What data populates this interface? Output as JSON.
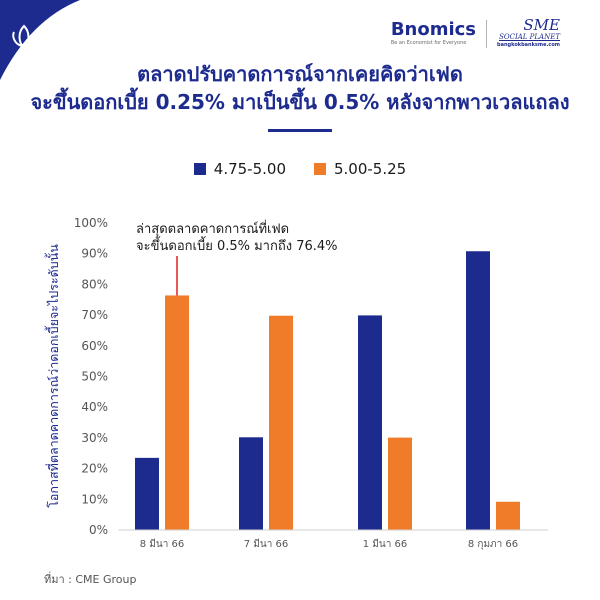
{
  "header": {
    "logo_bnomics": "Bnomics",
    "logo_bnomics_tagline": "Be an Economist for Everyone",
    "logo_sme": "SME",
    "logo_sme_sub": "SOCIAL PLANET",
    "logo_sme_url": "bangkokbanksme.com"
  },
  "title_line1": "ตลาดปรับคาดการณ์จากเคยคิดว่าเฟด",
  "title_line2": "จะขึ้นดอกเบี้ย 0.25% มาเป็นขึ้น 0.5% หลังจากพาวเวลแถลง",
  "source": "ที่มา : CME Group",
  "colors": {
    "primary": "#1d2b8f",
    "accent": "#f07c2a",
    "corner": "#1d2b8f"
  },
  "chart_data": {
    "type": "bar",
    "categories": [
      "8 มีนา 66",
      "7 มีนา 66",
      "1 มีนา 66",
      "8 กุมภา 66"
    ],
    "series": [
      {
        "name": "4.75-5.00",
        "color": "#1d2b8f",
        "values": [
          23.5,
          30.2,
          69.9,
          90.8
        ]
      },
      {
        "name": "5.00-5.25",
        "color": "#f07c2a",
        "values": [
          76.4,
          69.8,
          30.1,
          9.2
        ]
      }
    ],
    "ylabel": "โอกาสที่ตลาดคาดการณ์ว่าดอกเบี้ยจะไประดับนั้น",
    "xlabel": "",
    "ylim": [
      0,
      100
    ],
    "yticks": [
      "0%",
      "10%",
      "20%",
      "30%",
      "40%",
      "50%",
      "60%",
      "70%",
      "80%",
      "90%",
      "100%"
    ],
    "grid": false,
    "legend_position": "top-center",
    "annotation": {
      "line1": "ล่าสุดตลาดคาดการณ์ที่เฟด",
      "line2": "จะขึ้นดอกเบี้ย 0.5% มากถึง 76.4%",
      "category_index": 0,
      "series_index": 1
    }
  }
}
